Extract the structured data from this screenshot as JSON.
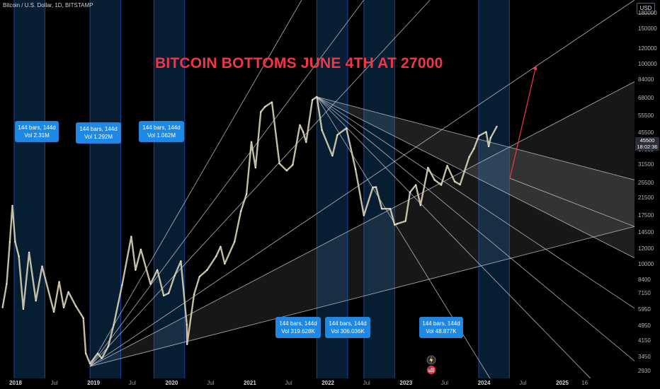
{
  "header": {
    "symbol": "Bitcoin / U.S. Dollar, 1D, BITSTAMP",
    "currency": "USD"
  },
  "price_badge": {
    "price": "45500",
    "countdown": "18:02:36"
  },
  "colors": {
    "background": "#000000",
    "headline": "#f23645",
    "range_fill": "#1e88e5",
    "range_box": "#1e88e5",
    "fan_lines": "#d1d4dc",
    "up_arrow": "#f23645",
    "candle": "#d8d2b4"
  },
  "annotation": {
    "headline": "BITCOIN BOTTOMS JUNE 4TH AT 27000"
  },
  "range_boxes": [
    {
      "line1": "144 bars, 144d",
      "line2": "Vol 2.31M"
    },
    {
      "line1": "144 bars, 144d",
      "line2": "Vol 1.292M"
    },
    {
      "line1": "144 bars, 144d",
      "line2": "Vol 1.062M"
    },
    {
      "line1": "144 bars, 144d",
      "line2": "Vol 319.628K"
    },
    {
      "line1": "144 bars, 144d",
      "line2": "Vol 306.036K"
    },
    {
      "line1": "144 bars, 144d",
      "line2": "Vol 48.877K"
    }
  ],
  "icons": {
    "flash_event": "lightning-icon",
    "us_event": "us-flag-icon"
  },
  "chart_data": {
    "type": "line",
    "yscale": "log",
    "ylim": [
      2700,
      210000
    ],
    "xlim": [
      "2017-10-20",
      "2025-12-05"
    ],
    "y_ticks": [
      180000,
      150000,
      120000,
      100000,
      84000,
      68000,
      55500,
      45500,
      37500,
      31500,
      25500,
      21500,
      17500,
      14500,
      12000,
      10000,
      8400,
      7150,
      5950,
      4950,
      4150,
      3450,
      2930
    ],
    "x_ticks": [
      {
        "label": "2018",
        "date": "2018-01-01"
      },
      {
        "label": "Jul",
        "date": "2018-07-01"
      },
      {
        "label": "2019",
        "date": "2019-01-01"
      },
      {
        "label": "Jul",
        "date": "2019-07-01"
      },
      {
        "label": "2020",
        "date": "2020-01-01"
      },
      {
        "label": "Jul",
        "date": "2020-07-01"
      },
      {
        "label": "2021",
        "date": "2021-01-01"
      },
      {
        "label": "Jul",
        "date": "2021-07-01"
      },
      {
        "label": "2022",
        "date": "2022-01-01"
      },
      {
        "label": "Jul",
        "date": "2022-07-01"
      },
      {
        "label": "2023",
        "date": "2023-01-01"
      },
      {
        "label": "Jul",
        "date": "2023-07-01"
      },
      {
        "label": "2024",
        "date": "2024-01-01"
      },
      {
        "label": "Jul",
        "date": "2024-07-01"
      },
      {
        "label": "2025",
        "date": "2025-01-01"
      },
      {
        "label": "16",
        "date": "2025-04-16"
      }
    ],
    "price": {
      "x": [
        "2017-11-01",
        "2017-11-20",
        "2017-12-05",
        "2017-12-17",
        "2017-12-30",
        "2018-01-16",
        "2018-02-06",
        "2018-03-05",
        "2018-04-06",
        "2018-05-05",
        "2018-06-29",
        "2018-07-24",
        "2018-08-14",
        "2018-09-05",
        "2018-10-10",
        "2018-11-14",
        "2018-11-25",
        "2018-12-15",
        "2019-01-20",
        "2019-02-08",
        "2019-03-10",
        "2019-04-05",
        "2019-05-14",
        "2019-06-26",
        "2019-07-16",
        "2019-08-10",
        "2019-09-24",
        "2019-10-26",
        "2019-11-25",
        "2019-12-18",
        "2020-01-15",
        "2020-02-13",
        "2020-03-12",
        "2020-03-13",
        "2020-04-15",
        "2020-05-10",
        "2020-06-15",
        "2020-07-27",
        "2020-08-17",
        "2020-09-05",
        "2020-10-21",
        "2020-11-20",
        "2020-12-16",
        "2021-01-08",
        "2021-01-27",
        "2021-02-21",
        "2021-03-13",
        "2021-04-14",
        "2021-05-19",
        "2021-06-22",
        "2021-07-20",
        "2021-08-23",
        "2021-09-07",
        "2021-09-21",
        "2021-10-20",
        "2021-11-10",
        "2021-12-04",
        "2022-01-22",
        "2022-02-14",
        "2022-03-28",
        "2022-05-10",
        "2022-06-18",
        "2022-07-30",
        "2022-08-14",
        "2022-09-10",
        "2022-10-20",
        "2022-11-09",
        "2022-11-21",
        "2022-12-30",
        "2023-01-20",
        "2023-02-16",
        "2023-03-10",
        "2023-04-14",
        "2023-05-15",
        "2023-06-15",
        "2023-07-13",
        "2023-08-17",
        "2023-09-11",
        "2023-10-24",
        "2023-11-15",
        "2023-12-08",
        "2024-01-11",
        "2024-01-23",
        "2024-02-01",
        "2024-03-01"
      ],
      "y": [
        6100,
        8000,
        13000,
        19700,
        13000,
        11000,
        6000,
        11500,
        6600,
        9800,
        5800,
        8200,
        6100,
        7300,
        6200,
        5400,
        3600,
        3200,
        3600,
        3400,
        3900,
        5000,
        7900,
        13800,
        9400,
        11900,
        8000,
        9400,
        7000,
        7200,
        8800,
        10400,
        5000,
        4000,
        7100,
        8700,
        9400,
        11000,
        12300,
        10100,
        13000,
        18500,
        22500,
        41000,
        30500,
        58000,
        61500,
        64800,
        32000,
        29500,
        31500,
        49800,
        46000,
        40900,
        66500,
        68900,
        47000,
        35000,
        44500,
        48000,
        30000,
        17600,
        24300,
        24400,
        19000,
        19000,
        15800,
        16000,
        16500,
        23000,
        25000,
        19800,
        30500,
        26500,
        25000,
        31200,
        26000,
        25100,
        34500,
        38000,
        44000,
        46000,
        39000,
        43000,
        49000
      ]
    },
    "fan_lines": [
      {
        "from": [
          "2018-12-15",
          3100
        ],
        "to": [
          "2025-12-05",
          210000
        ]
      },
      {
        "from": [
          "2018-12-15",
          3100
        ],
        "to": [
          "2025-12-05",
          82000
        ]
      },
      {
        "from": [
          "2018-12-15",
          3100
        ],
        "to": [
          "2025-12-05",
          15500
        ]
      },
      {
        "from": [
          "2018-12-15",
          3100
        ],
        "to": [
          "2021-08-31",
          210000
        ]
      },
      {
        "from": [
          "2018-12-15",
          3100
        ],
        "to": [
          "2022-06-18",
          210000
        ]
      },
      {
        "from": [
          "2018-12-15",
          3100
        ],
        "to": [
          "2023-04-24",
          210000
        ]
      },
      {
        "from": [
          "2021-11-10",
          68900
        ],
        "to": [
          "2025-12-05",
          26500
        ]
      },
      {
        "from": [
          "2021-11-10",
          68900
        ],
        "to": [
          "2025-12-05",
          10800
        ]
      },
      {
        "from": [
          "2021-11-10",
          68900
        ],
        "to": [
          "2025-12-05",
          6050
        ]
      },
      {
        "from": [
          "2021-11-10",
          68900
        ],
        "to": [
          "2025-12-05",
          3300
        ]
      },
      {
        "from": [
          "2021-11-10",
          68900
        ],
        "to": [
          "2025-05-13",
          2700
        ]
      },
      {
        "from": [
          "2021-11-10",
          68900
        ],
        "to": [
          "2024-01-29",
          2700
        ]
      },
      {
        "from": [
          "2024-05-01",
          27000
        ],
        "to": [
          "2025-12-05",
          15500
        ]
      }
    ],
    "up_arrow": {
      "from": [
        "2024-05-01",
        27000
      ],
      "to": [
        "2024-09-01",
        99000
      ]
    },
    "shaded_fan": [
      [
        "2018-12-15",
        3100
      ],
      [
        "2025-12-05",
        82000
      ],
      [
        "2025-12-05",
        15500
      ]
    ],
    "shaded_wedge": [
      [
        "2021-11-10",
        68900
      ],
      [
        "2025-12-05",
        26500
      ],
      [
        "2025-12-05",
        10800
      ]
    ],
    "ranges": [
      {
        "start": "2017-12-25",
        "end": "2018-05-18"
      },
      {
        "start": "2018-12-15",
        "end": "2019-05-08"
      },
      {
        "start": "2019-10-10",
        "end": "2020-03-02"
      },
      {
        "start": "2021-11-10",
        "end": "2022-04-03"
      },
      {
        "start": "2022-06-18",
        "end": "2022-11-09"
      },
      {
        "start": "2023-12-07",
        "end": "2024-04-29"
      }
    ]
  }
}
